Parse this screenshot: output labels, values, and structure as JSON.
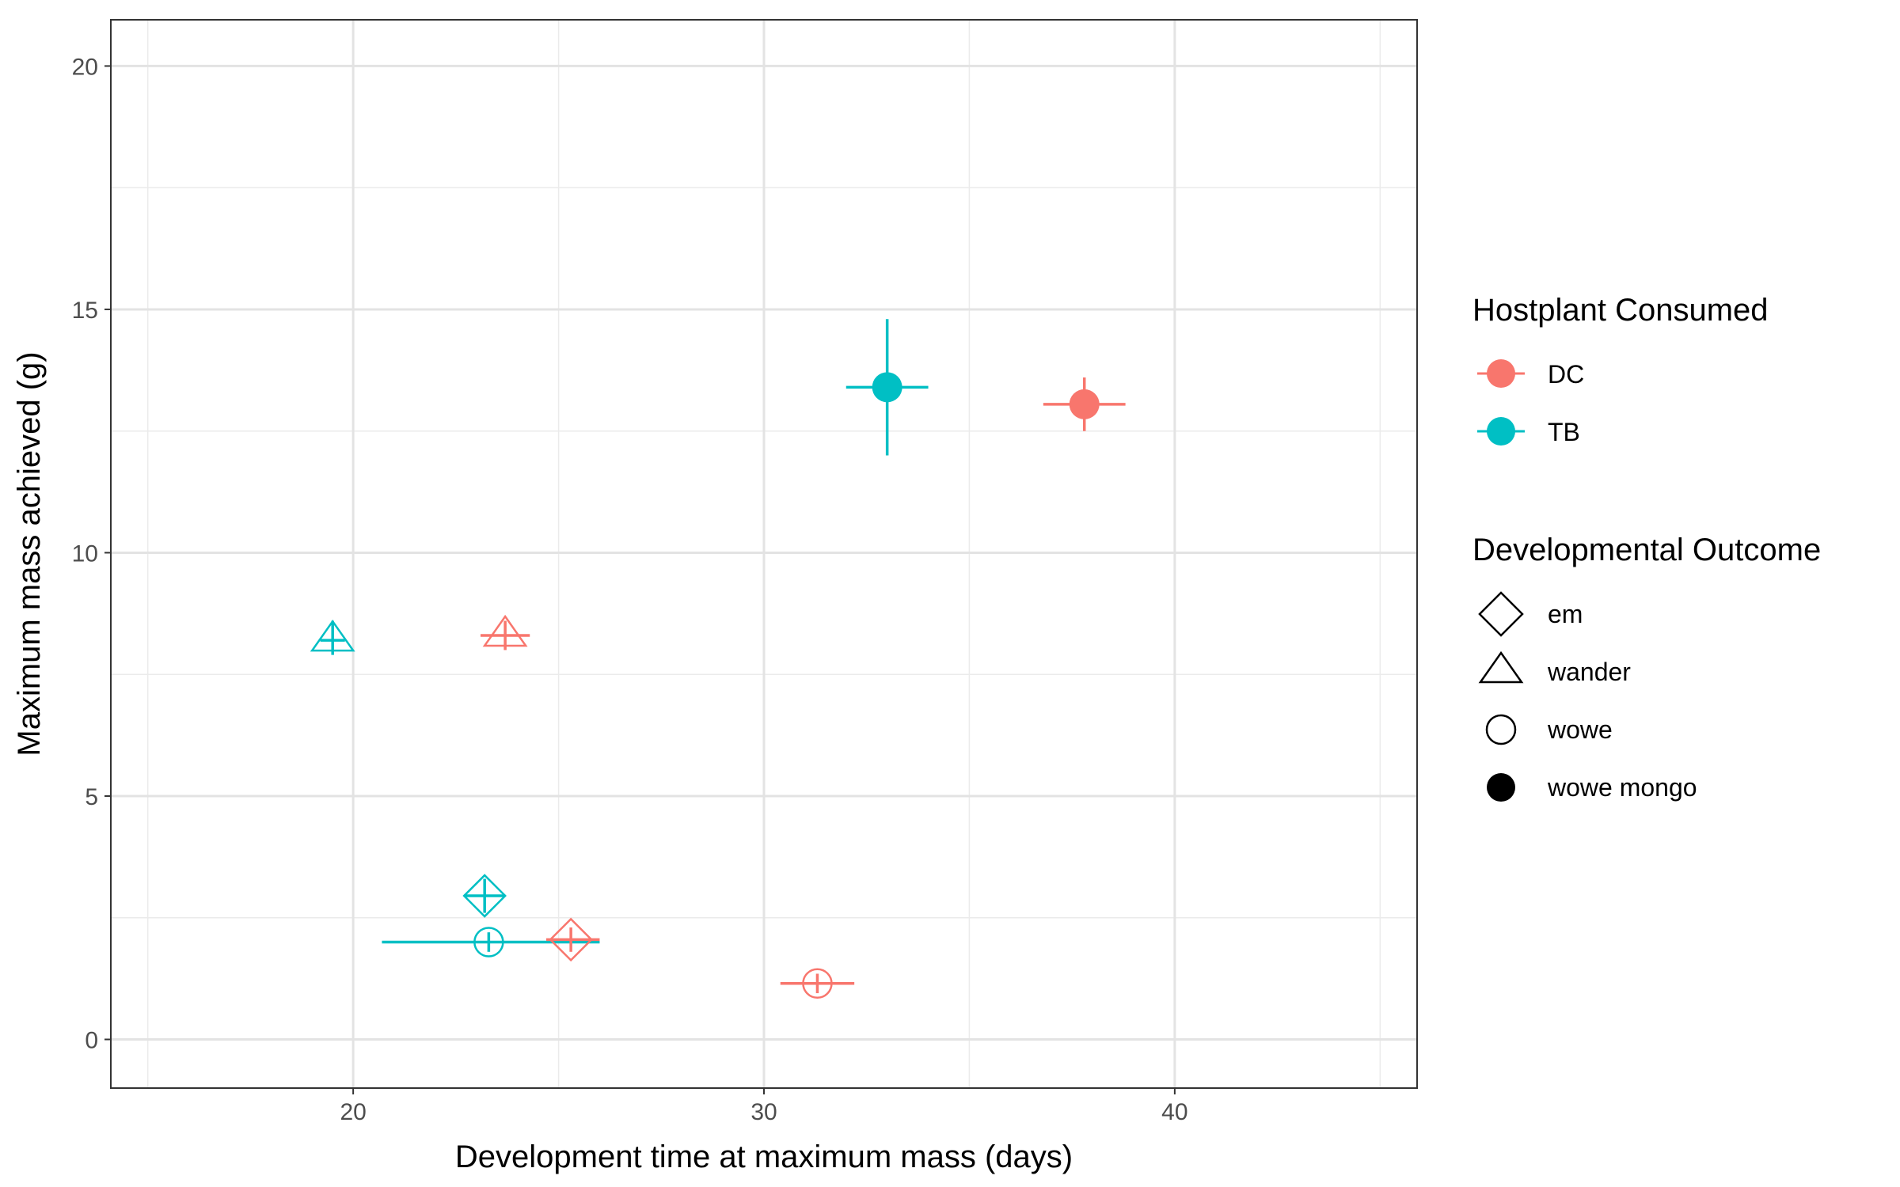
{
  "chart_data": {
    "type": "scatter",
    "title": "",
    "xlabel": "Development time at maximum mass (days)",
    "ylabel": "Maximum mass achieved (g)",
    "xlim": [
      14.1,
      45.9
    ],
    "ylim": [
      -1.0,
      20.95
    ],
    "x_ticks": [
      20,
      30,
      40
    ],
    "y_ticks": [
      0,
      5,
      10,
      15,
      20
    ],
    "grid": true,
    "legend_position": "right",
    "legends": [
      {
        "title": "Hostplant Consumed",
        "items": [
          {
            "label": "DC",
            "color": "#F8766D"
          },
          {
            "label": "TB",
            "color": "#00BFC4"
          }
        ]
      },
      {
        "title": "Developmental Outcome",
        "items": [
          {
            "label": "em",
            "shape": "diamond"
          },
          {
            "label": "wander",
            "shape": "triangle"
          },
          {
            "label": "wowe",
            "shape": "circle"
          },
          {
            "label": "wowe mongo",
            "shape": "filled-circle"
          }
        ]
      }
    ],
    "series": [
      {
        "host": "TB",
        "outcome": "wander",
        "x": 19.5,
        "y": 8.2,
        "x_err": [
          19.2,
          19.8
        ],
        "y_err": [
          7.9,
          8.6
        ]
      },
      {
        "host": "DC",
        "outcome": "wander",
        "x": 23.7,
        "y": 8.3,
        "x_err": [
          23.1,
          24.3
        ],
        "y_err": [
          8.0,
          8.6
        ]
      },
      {
        "host": "TB",
        "outcome": "em",
        "x": 23.2,
        "y": 2.95,
        "x_err": [
          22.7,
          23.7
        ],
        "y_err": [
          2.6,
          3.3
        ]
      },
      {
        "host": "TB",
        "outcome": "wowe",
        "x": 23.3,
        "y": 2.0,
        "x_err": [
          20.7,
          26.0
        ],
        "y_err": [
          1.8,
          2.2
        ]
      },
      {
        "host": "DC",
        "outcome": "em",
        "x": 25.3,
        "y": 2.05,
        "x_err": [
          24.7,
          26.0
        ],
        "y_err": [
          1.8,
          2.3
        ]
      },
      {
        "host": "DC",
        "outcome": "wowe",
        "x": 31.3,
        "y": 1.15,
        "x_err": [
          30.4,
          32.2
        ],
        "y_err": [
          0.95,
          1.35
        ]
      },
      {
        "host": "TB",
        "outcome": "wowe mongo",
        "x": 33.0,
        "y": 13.4,
        "x_err": [
          32.0,
          34.0
        ],
        "y_err": [
          12.0,
          14.8
        ]
      },
      {
        "host": "DC",
        "outcome": "wowe mongo",
        "x": 37.8,
        "y": 13.05,
        "x_err": [
          36.8,
          38.8
        ],
        "y_err": [
          12.5,
          13.6
        ]
      }
    ]
  }
}
